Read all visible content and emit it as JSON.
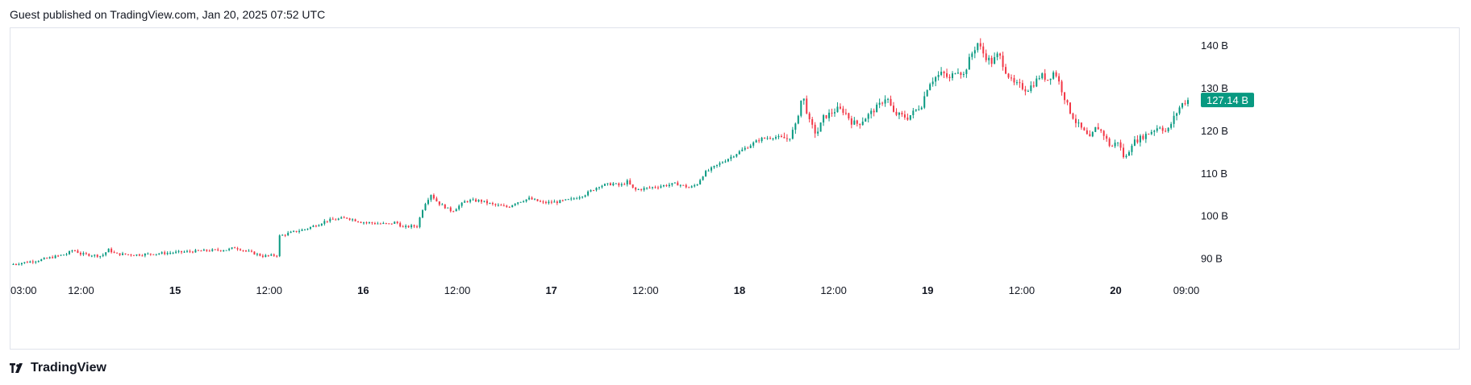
{
  "header": {
    "text": "Guest published on TradingView.com, Jan 20, 2025 07:52 UTC"
  },
  "footer": {
    "brand": "TradingView"
  },
  "colors": {
    "up": "#089981",
    "down": "#f23645",
    "price_badge": "#089981",
    "border": "#e0e3eb",
    "text": "#131722"
  },
  "chart_data": {
    "type": "candlestick",
    "y_unit": "B",
    "ylim": [
      85,
      144
    ],
    "y_ticks": [
      {
        "value": 90,
        "label": "90 B"
      },
      {
        "value": 100,
        "label": "100 B"
      },
      {
        "value": 110,
        "label": "110 B"
      },
      {
        "value": 120,
        "label": "120 B"
      },
      {
        "value": 130,
        "label": "130 B"
      },
      {
        "value": 140,
        "label": "140 B"
      }
    ],
    "x_ticks": [
      {
        "t": 0,
        "label": "03:00"
      },
      {
        "t": 9,
        "label": "12:00"
      },
      {
        "t": 21,
        "label": "15",
        "bold": true
      },
      {
        "t": 33,
        "label": "12:00"
      },
      {
        "t": 45,
        "label": "16",
        "bold": true
      },
      {
        "t": 57,
        "label": "12:00"
      },
      {
        "t": 69,
        "label": "17",
        "bold": true
      },
      {
        "t": 81,
        "label": "12:00"
      },
      {
        "t": 93,
        "label": "18",
        "bold": true
      },
      {
        "t": 105,
        "label": "12:00"
      },
      {
        "t": 117,
        "label": "19",
        "bold": true
      },
      {
        "t": 129,
        "label": "12:00"
      },
      {
        "t": 141,
        "label": "20",
        "bold": true
      },
      {
        "t": 150,
        "label": "09:00"
      }
    ],
    "t_range": [
      0,
      152
    ],
    "last_price": {
      "value": 127.14,
      "label": "127.14 B"
    },
    "price_path": [
      [
        0,
        88.5
      ],
      [
        4,
        89.5
      ],
      [
        8,
        91.0
      ],
      [
        9,
        92.0
      ],
      [
        10,
        91.0
      ],
      [
        13,
        90.5
      ],
      [
        14,
        92.0
      ],
      [
        15,
        91.0
      ],
      [
        18,
        90.8
      ],
      [
        22,
        91.2
      ],
      [
        25,
        91.5
      ],
      [
        28,
        91.8
      ],
      [
        31,
        92.0
      ],
      [
        32,
        92.5
      ],
      [
        34,
        91.5
      ],
      [
        36,
        90.5
      ],
      [
        38,
        90.7
      ],
      [
        37,
        91.0
      ],
      [
        38,
        95.0
      ],
      [
        40,
        96.0
      ],
      [
        42,
        96.8
      ],
      [
        44,
        98.0
      ],
      [
        45,
        98.8
      ],
      [
        48,
        99.5
      ],
      [
        50,
        98.5
      ],
      [
        52,
        98.2
      ],
      [
        54,
        98.0
      ],
      [
        55,
        98.5
      ],
      [
        56,
        97.2
      ],
      [
        57,
        97.5
      ],
      [
        58,
        97.5
      ],
      [
        59,
        102.5
      ],
      [
        60,
        105.0
      ],
      [
        61,
        103.0
      ],
      [
        63,
        101.0
      ],
      [
        65,
        103.5
      ],
      [
        67,
        103.5
      ],
      [
        69,
        102.5
      ],
      [
        71,
        102.0
      ],
      [
        72,
        103.0
      ],
      [
        74,
        104.0
      ],
      [
        76,
        103.0
      ],
      [
        78,
        103.2
      ],
      [
        80,
        103.8
      ],
      [
        82,
        105.0
      ],
      [
        84,
        107.0
      ],
      [
        86,
        107.5
      ],
      [
        87,
        107.0
      ],
      [
        88,
        108.0
      ],
      [
        89,
        106.0
      ],
      [
        91,
        106.5
      ],
      [
        93,
        107.0
      ],
      [
        95,
        107.5
      ],
      [
        97,
        106.5
      ],
      [
        98,
        107.5
      ],
      [
        99,
        110.0
      ],
      [
        101,
        112.0
      ],
      [
        103,
        114.0
      ],
      [
        105,
        116.0
      ],
      [
        107,
        118.0
      ],
      [
        109,
        118.5
      ],
      [
        111,
        118.0
      ],
      [
        112,
        121.0
      ],
      [
        113,
        128.5
      ],
      [
        114,
        122.0
      ],
      [
        115,
        119.0
      ],
      [
        116,
        123.0
      ],
      [
        118,
        125.0
      ],
      [
        119,
        124.5
      ],
      [
        120,
        122.0
      ],
      [
        121,
        121.5
      ],
      [
        123,
        124.5
      ],
      [
        124,
        126.0
      ],
      [
        125,
        128.0
      ],
      [
        126,
        124.0
      ],
      [
        127,
        123.5
      ],
      [
        128,
        123.0
      ],
      [
        130,
        126.0
      ],
      [
        131,
        131.0
      ],
      [
        132,
        132.5
      ],
      [
        133,
        133.5
      ],
      [
        134,
        132.0
      ],
      [
        135,
        134.5
      ],
      [
        136,
        133.0
      ],
      [
        137,
        137.5
      ],
      [
        138,
        140.5
      ],
      [
        139,
        137.5
      ],
      [
        140,
        136.0
      ],
      [
        141,
        138.0
      ],
      [
        142,
        134.0
      ],
      [
        143,
        131.0
      ],
      [
        144,
        130.5
      ],
      [
        145,
        129.5
      ],
      [
        146,
        131.0
      ],
      [
        147,
        133.0
      ],
      [
        148,
        132.0
      ],
      [
        149,
        134.0
      ],
      [
        150,
        129.5
      ],
      [
        151,
        125.0
      ],
      [
        152,
        122.0
      ],
      [
        153,
        120.0
      ],
      [
        154,
        118.0
      ],
      [
        155,
        121.0
      ],
      [
        156,
        119.0
      ],
      [
        157,
        116.0
      ],
      [
        158,
        117.5
      ],
      [
        159,
        113.0
      ],
      [
        160,
        117.0
      ],
      [
        162,
        119.0
      ],
      [
        164,
        121.0
      ],
      [
        165,
        119.5
      ],
      [
        166,
        123.0
      ],
      [
        167,
        126.0
      ],
      [
        168,
        127.14
      ]
    ]
  }
}
